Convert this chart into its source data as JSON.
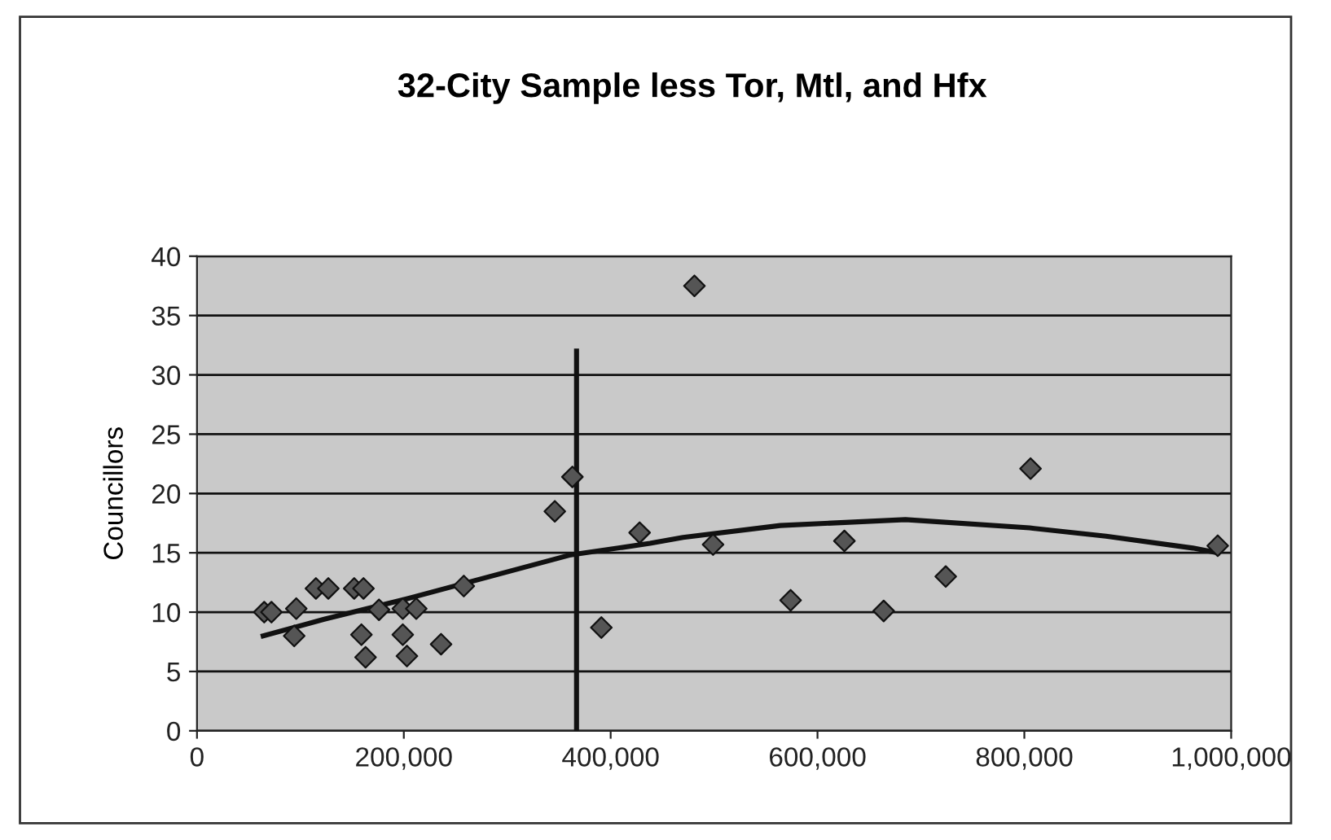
{
  "chart_data": {
    "type": "scatter",
    "title": "32-City Sample less Tor, Mtl, and Hfx",
    "ylabel": "Councillors",
    "xlim": [
      0,
      1000000
    ],
    "ylim": [
      0,
      40
    ],
    "xticks": [
      0,
      {
        "value": 200000,
        "label": "200,000"
      },
      {
        "value": 400000,
        "label": "400,000"
      },
      {
        "value": 600000,
        "label": "600,000"
      },
      {
        "value": 800000,
        "label": "800,000"
      },
      {
        "value": 1000000,
        "label": "1,000,000"
      }
    ],
    "yticks": [
      0,
      5,
      10,
      15,
      20,
      25,
      30,
      35,
      40
    ],
    "grid": "y",
    "legend": false,
    "marker": "diamond",
    "series": [
      {
        "color": "#555555",
        "x": [
          65000,
          72000,
          96000,
          94000,
          115000,
          127000,
          152000,
          161000,
          159000,
          163000,
          176000,
          199000,
          212000,
          199000,
          203000,
          236000,
          258000,
          346000,
          363000,
          391000,
          428000,
          481000,
          499000,
          574000,
          626000,
          664000,
          724000,
          806000,
          987000
        ],
        "values": [
          10,
          10,
          10.3,
          8,
          12,
          12,
          12,
          12,
          8.1,
          6.2,
          10.2,
          10.3,
          10.3,
          8.1,
          6.3,
          7.3,
          12.2,
          18.5,
          21.4,
          8.7,
          16.7,
          37.5,
          15.7,
          11,
          16,
          10.1,
          13,
          22.1,
          15.6
        ]
      },
      {
        "type": "line",
        "color": "#111111",
        "marker": "none",
        "x": [
          64000,
          123000,
          202000,
          360000,
          438000,
          470000,
          564000,
          685000,
          805000,
          879000,
          963000,
          987000
        ],
        "values": [
          8,
          9.4,
          11.1,
          14.8,
          15.8,
          16.3,
          17.3,
          17.8,
          17.1,
          16.4,
          15.4,
          15
        ]
      },
      {
        "type": "line",
        "color": "#111111",
        "marker": "none",
        "x": [
          367000,
          367000
        ],
        "values": [
          0,
          32
        ]
      }
    ]
  }
}
